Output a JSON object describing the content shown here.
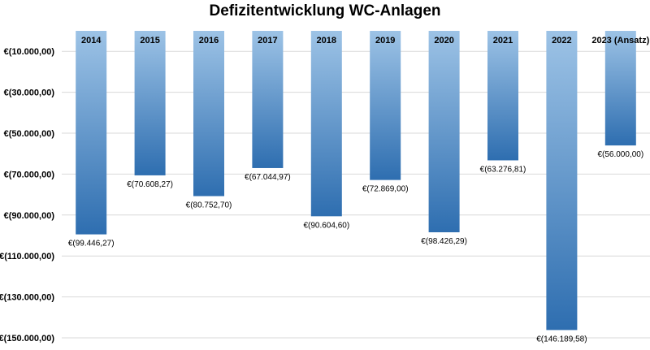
{
  "chart_data": {
    "type": "bar",
    "title": "Defizitentwicklung WC-Anlagen",
    "xlabel": "",
    "ylabel": "",
    "categories": [
      "2014",
      "2015",
      "2016",
      "2017",
      "2018",
      "2019",
      "2020",
      "2021",
      "2022",
      "2023 (Ansatz)"
    ],
    "values": [
      -99446.27,
      -70608.27,
      -80752.7,
      -67044.97,
      -90604.6,
      -72869.0,
      -98426.29,
      -63276.81,
      -146189.58,
      -56000.0
    ],
    "data_labels": [
      "€(99.446,27)",
      "€(70.608,27)",
      "€(80.752,70)",
      "€(67.044,97)",
      "€(90.604,60)",
      "€(72.869,00)",
      "€(98.426,29)",
      "€(63.276,81)",
      "€(146.189,58)",
      "€(56.000,00)"
    ],
    "ylim": [
      -150000,
      0
    ],
    "y_ticks": [
      -10000,
      -30000,
      -50000,
      -70000,
      -90000,
      -110000,
      -130000,
      -150000
    ],
    "y_tick_labels": [
      "€(10.000,00)",
      "€(30.000,00)",
      "€(50.000,00)",
      "€(70.000,00)",
      "€(90.000,00)",
      "€(110.000,00)",
      "€(130.000,00)",
      "€(150.000,00)"
    ],
    "grid": true,
    "legend": "none",
    "colors": {
      "bar_light": "#9dc3e6",
      "bar_dark": "#2e6eb0",
      "grid": "#d9d9d9"
    }
  }
}
